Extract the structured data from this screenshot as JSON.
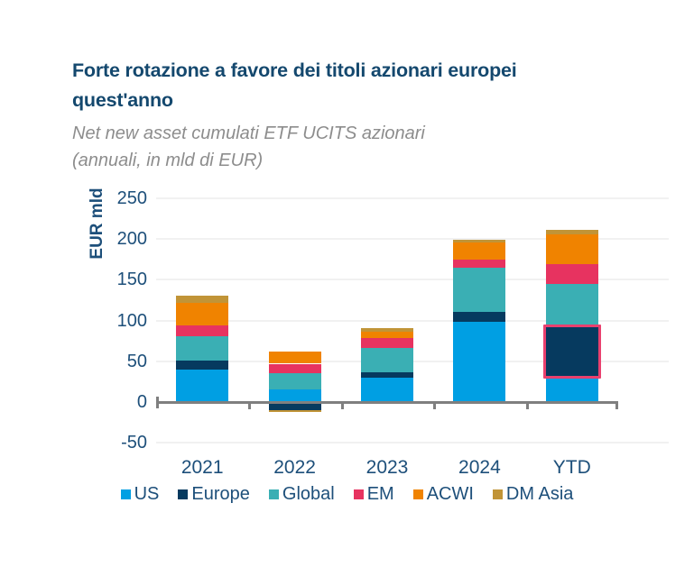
{
  "title": {
    "line1": "Forte rotazione a favore dei titoli azionari europei",
    "line2": "quest'anno"
  },
  "subtitle": {
    "line1": "Net new asset cumulati ETF UCITS azionari",
    "line2": "(annuali, in mld di EUR)"
  },
  "chart_data": {
    "type": "bar",
    "stacked": true,
    "title": "Forte rotazione a favore dei titoli azionari europei quest'anno",
    "subtitle": "Net new asset cumulati ETF UCITS azionari (annuali, in mld di EUR)",
    "ylabel": "EUR mld",
    "xlabel": "",
    "ylim": [
      -50,
      250
    ],
    "yticks": [
      250,
      200,
      150,
      100,
      50,
      0,
      -50
    ],
    "grid": true,
    "legend_position": "bottom",
    "categories": [
      "2021",
      "2022",
      "2023",
      "2024",
      "YTD"
    ],
    "series": [
      {
        "name": "US",
        "color": "#009FE3",
        "values": [
          40,
          15,
          30,
          98,
          32
        ]
      },
      {
        "name": "Europe",
        "color": "#063A5F",
        "values": [
          11,
          -10,
          7,
          13,
          60
        ]
      },
      {
        "name": "Global",
        "color": "#3AAFB4",
        "values": [
          30,
          20,
          29,
          54,
          53
        ]
      },
      {
        "name": "EM",
        "color": "#E73360",
        "values": [
          13,
          12,
          13,
          10,
          24
        ]
      },
      {
        "name": "ACWI",
        "color": "#F08300",
        "values": [
          28,
          15,
          7,
          21,
          37
        ]
      },
      {
        "name": "DM Asia",
        "color": "#C19437",
        "values": [
          9,
          -2,
          5,
          3,
          5
        ]
      }
    ],
    "highlight": {
      "category": "YTD",
      "series": "Europe",
      "border_color": "#E9406E"
    }
  },
  "colors": {
    "title_text": "#14486E",
    "axis_text": "#1D4F7A",
    "subtitle_text": "#8D8D8D",
    "axis_line": "#7F7F7F",
    "gridline": "#F1F1F1",
    "background": "#FFFFFF"
  }
}
